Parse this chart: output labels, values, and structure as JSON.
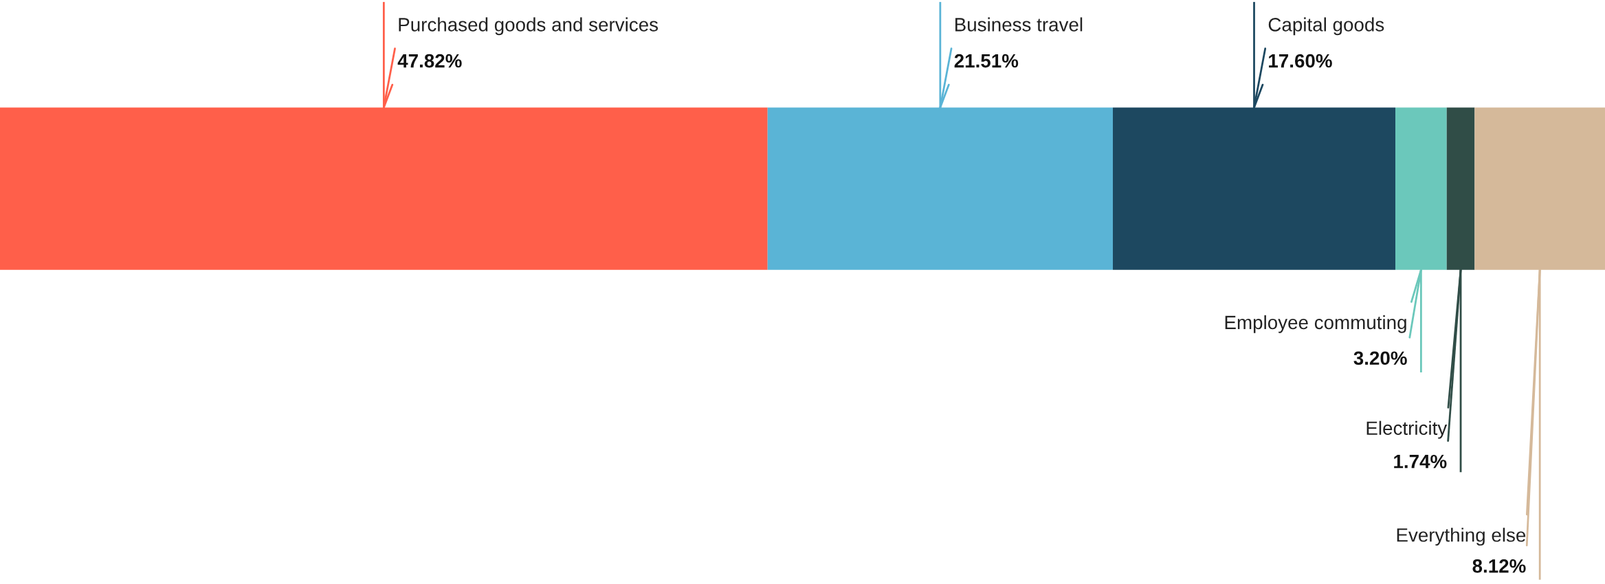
{
  "chart_data": {
    "type": "bar",
    "orientation": "horizontal",
    "stacked": true,
    "tick_labels": false,
    "categories": [
      null
    ],
    "series": [
      {
        "name": "Purchased goods and services",
        "color": "#ff5f4a",
        "values": [
          47.82
        ],
        "value_labels": [
          "47.82%"
        ]
      },
      {
        "name": "Business travel",
        "color": "#5ab4d6",
        "values": [
          21.51
        ],
        "value_labels": [
          "21.51%"
        ]
      },
      {
        "name": "Capital goods",
        "color": "#1d4860",
        "values": [
          17.6
        ],
        "value_labels": [
          "17.60%"
        ]
      },
      {
        "name": "Employee commuting",
        "color": "#6bc8bb",
        "values": [
          3.2
        ],
        "value_labels": [
          "3.20%"
        ]
      },
      {
        "name": "Electricity",
        "color": "#304d47",
        "values": [
          1.74
        ],
        "value_labels": [
          "1.74%"
        ]
      },
      {
        "name": "Everything else",
        "color": "#d5b99a",
        "values": [
          8.12
        ],
        "value_labels": [
          "8.12%"
        ]
      }
    ]
  }
}
